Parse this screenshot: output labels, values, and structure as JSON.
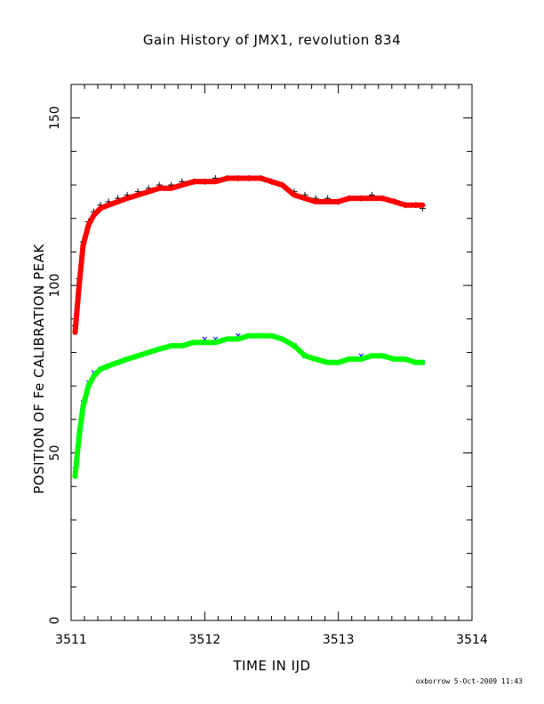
{
  "chart_data": {
    "type": "scatter",
    "title": "Gain History of JMX1, revolution 834",
    "xlabel": "TIME IN IJD",
    "ylabel": "POSITION OF Fe CALIBRATION PEAK",
    "xlim": [
      3511,
      3514
    ],
    "ylim": [
      0,
      160
    ],
    "x_ticks": [
      3511,
      3512,
      3513,
      3514
    ],
    "y_ticks": [
      0,
      50,
      100,
      150
    ],
    "grid": false,
    "footer": "oxborrow  5-Oct-2009 11:43",
    "series": [
      {
        "marker": "+",
        "color": "#000000",
        "x": [
          3511.03,
          3511.06,
          3511.09,
          3511.13,
          3511.17,
          3511.22,
          3511.28,
          3511.35,
          3511.42,
          3511.5,
          3511.58,
          3511.66,
          3511.75,
          3511.83,
          3511.92,
          3512.0,
          3512.08,
          3512.17,
          3512.25,
          3512.33,
          3512.42,
          3512.5,
          3512.58,
          3512.67,
          3512.75,
          3512.83,
          3512.92,
          3513.0,
          3513.08,
          3513.17,
          3513.25,
          3513.33,
          3513.42,
          3513.5,
          3513.58,
          3513.63
        ],
        "y": [
          88,
          102,
          113,
          119,
          122,
          124,
          125,
          126,
          127,
          128,
          129,
          130,
          130,
          131,
          131,
          131,
          132,
          132,
          132,
          132,
          132,
          131,
          130,
          128,
          127,
          126,
          126,
          125,
          126,
          126,
          127,
          126,
          125,
          124,
          124,
          123
        ]
      },
      {
        "marker": "solid",
        "color": "#ff0000",
        "x": [
          3511.03,
          3511.06,
          3511.09,
          3511.13,
          3511.17,
          3511.22,
          3511.28,
          3511.35,
          3511.42,
          3511.5,
          3511.58,
          3511.66,
          3511.75,
          3511.83,
          3511.92,
          3512.0,
          3512.08,
          3512.17,
          3512.25,
          3512.33,
          3512.42,
          3512.5,
          3512.58,
          3512.67,
          3512.75,
          3512.83,
          3512.92,
          3513.0,
          3513.08,
          3513.17,
          3513.25,
          3513.33,
          3513.42,
          3513.5,
          3513.58,
          3513.63
        ],
        "y": [
          86,
          100,
          112,
          118,
          121,
          123,
          124,
          125,
          126,
          127,
          128,
          129,
          129,
          130,
          131,
          131,
          131,
          132,
          132,
          132,
          132,
          131,
          130,
          127,
          126,
          125,
          125,
          125,
          126,
          126,
          126,
          126,
          125,
          124,
          124,
          124
        ]
      },
      {
        "marker": "x",
        "color": "#0000ff",
        "x": [
          3511.03,
          3511.06,
          3511.09,
          3511.13,
          3511.17,
          3511.22,
          3511.28,
          3511.35,
          3511.42,
          3511.5,
          3511.58,
          3511.66,
          3511.75,
          3511.83,
          3511.92,
          3512.0,
          3512.08,
          3512.17,
          3512.25,
          3512.33,
          3512.42,
          3512.5,
          3512.58,
          3512.67,
          3512.75,
          3512.83,
          3512.92,
          3513.0,
          3513.08,
          3513.17,
          3513.25,
          3513.33,
          3513.42,
          3513.5,
          3513.58,
          3513.63
        ],
        "y": [
          45,
          56,
          65,
          71,
          74,
          75,
          76,
          77,
          78,
          79,
          80,
          81,
          82,
          82,
          83,
          84,
          84,
          84,
          85,
          85,
          85,
          85,
          84,
          82,
          79,
          78,
          77,
          77,
          78,
          79,
          79,
          79,
          78,
          78,
          77,
          77
        ]
      },
      {
        "marker": "solid",
        "color": "#00ff00",
        "x": [
          3511.03,
          3511.06,
          3511.09,
          3511.13,
          3511.17,
          3511.22,
          3511.28,
          3511.35,
          3511.42,
          3511.5,
          3511.58,
          3511.66,
          3511.75,
          3511.83,
          3511.92,
          3512.0,
          3512.08,
          3512.17,
          3512.25,
          3512.33,
          3512.42,
          3512.5,
          3512.58,
          3512.67,
          3512.75,
          3512.83,
          3512.92,
          3513.0,
          3513.08,
          3513.17,
          3513.25,
          3513.33,
          3513.42,
          3513.5,
          3513.58,
          3513.63
        ],
        "y": [
          43,
          55,
          64,
          70,
          73,
          75,
          76,
          77,
          78,
          79,
          80,
          81,
          82,
          82,
          83,
          83,
          83,
          84,
          84,
          85,
          85,
          85,
          84,
          82,
          79,
          78,
          77,
          77,
          78,
          78,
          79,
          79,
          78,
          78,
          77,
          77
        ]
      }
    ]
  }
}
